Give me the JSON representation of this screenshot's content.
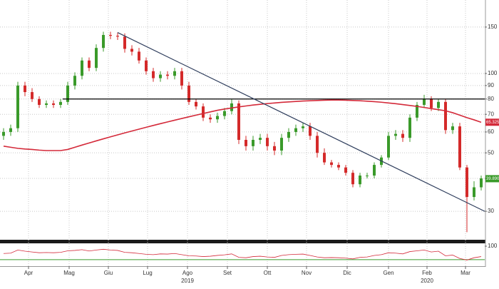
{
  "chart_data": {
    "type": "candlestick",
    "log_scale": true,
    "grid": true,
    "up_color": "#3a9a2a",
    "down_color": "#d42a2a",
    "xlim": [
      -0.5,
      67.5
    ],
    "ylim": [
      23.4,
      190
    ],
    "yticks": [
      30,
      40,
      50,
      60,
      70,
      80,
      90,
      100,
      150
    ],
    "xticks": [
      {
        "value": 3.5,
        "label": "Apr"
      },
      {
        "value": 9.2,
        "label": "Mag"
      },
      {
        "value": 14.7,
        "label": "Giu"
      },
      {
        "value": 20.2,
        "label": "Lug"
      },
      {
        "value": 25.8,
        "label": "Ago"
      },
      {
        "value": 31.4,
        "label": "Set"
      },
      {
        "value": 37,
        "label": "Ott"
      },
      {
        "value": 42.5,
        "label": "Nov"
      },
      {
        "value": 48.2,
        "label": "Dic"
      },
      {
        "value": 54,
        "label": "Gen"
      },
      {
        "value": 59.4,
        "label": "Feb"
      },
      {
        "value": 64.8,
        "label": "Mar"
      }
    ],
    "year_labels": [
      {
        "value": 25.8,
        "label": "2019"
      },
      {
        "value": 59.4,
        "label": "2020"
      }
    ],
    "open": [
      58,
      60,
      62,
      90,
      85,
      80,
      76,
      77,
      76,
      78,
      90,
      98,
      112,
      105,
      125,
      140,
      139,
      138,
      124,
      121,
      112,
      102,
      96,
      99,
      98,
      102,
      90,
      78,
      75,
      68,
      67,
      69,
      72,
      77,
      56,
      53,
      56,
      57,
      53,
      51,
      57,
      60,
      62,
      63,
      58,
      50,
      46,
      45,
      44,
      42,
      38,
      41,
      41,
      45,
      48,
      58,
      59,
      57,
      68,
      76,
      80,
      74,
      78,
      61,
      63,
      44,
      34,
      37
    ],
    "high": [
      62,
      64,
      93,
      93,
      88,
      82,
      79,
      79,
      80,
      93,
      101,
      115,
      115,
      129,
      144,
      144,
      143,
      142,
      128,
      125,
      115,
      105,
      102,
      102,
      105,
      105,
      93,
      80,
      77,
      70,
      71,
      74,
      80,
      79,
      58,
      58,
      59,
      59,
      55,
      59,
      62,
      64,
      65,
      65,
      60,
      52,
      47,
      46,
      45,
      43,
      42,
      42,
      46,
      49,
      60,
      61,
      61,
      70,
      78,
      83,
      82,
      80,
      80,
      65,
      65,
      45,
      39,
      41
    ],
    "low": [
      56,
      58,
      60,
      82,
      78,
      74,
      74,
      74,
      74,
      76,
      87,
      95,
      102,
      102,
      121,
      135,
      134,
      120,
      117,
      109,
      99,
      93,
      93,
      95,
      95,
      87,
      76,
      73,
      66,
      65,
      65,
      67,
      70,
      54,
      51,
      51,
      54,
      51,
      49,
      49,
      55,
      58,
      60,
      56,
      48,
      45,
      44,
      43,
      41,
      37,
      37,
      40,
      40,
      44,
      47,
      56,
      55,
      55,
      66,
      74,
      72,
      72,
      59,
      59,
      43,
      25,
      33,
      36
    ],
    "close": [
      60,
      62,
      90,
      85,
      80,
      76,
      77,
      76,
      78,
      90,
      98,
      112,
      105,
      125,
      140,
      139,
      138,
      124,
      121,
      112,
      102,
      96,
      99,
      98,
      102,
      90,
      78,
      75,
      68,
      67,
      69,
      72,
      77,
      56,
      53,
      56,
      57,
      53,
      51,
      57,
      60,
      62,
      63,
      58,
      50,
      46,
      45,
      44,
      42,
      38,
      41,
      41,
      45,
      48,
      58,
      59,
      57,
      68,
      76,
      80,
      74,
      78,
      61,
      63,
      44,
      34,
      37,
      40
    ],
    "moving_average": {
      "color": "#d42a3a",
      "values": [
        53,
        52.5,
        52,
        51.7,
        51.5,
        51.2,
        51,
        51,
        51,
        51.5,
        52.5,
        53.5,
        54.5,
        55.5,
        56.5,
        57.5,
        58.5,
        59.5,
        60.5,
        61.5,
        62.5,
        63.5,
        64.5,
        65.5,
        66.5,
        67.5,
        68.5,
        69.5,
        70.5,
        71.5,
        72.5,
        73.3,
        74,
        74.7,
        75.3,
        75.9,
        76.4,
        76.9,
        77.3,
        77.7,
        78,
        78.3,
        78.6,
        78.8,
        79,
        79.2,
        79.3,
        79.3,
        79.2,
        79,
        78.8,
        78.5,
        78.2,
        77.8,
        77.3,
        76.8,
        76.2,
        75.6,
        75,
        74.3,
        73.6,
        72.9,
        72.2,
        71,
        69.5,
        68,
        66.7,
        65.3
      ]
    },
    "last_price": {
      "value": 39.89,
      "label": "39.890"
    },
    "ma_last": 65.3254,
    "trend_lines": [
      {
        "color": "#000000",
        "x": [
          8.3,
          67.5
        ],
        "y": [
          80,
          80
        ]
      },
      {
        "color": "#2e3d5c",
        "x": [
          16,
          67.5
        ],
        "y": [
          143,
          30
        ]
      }
    ],
    "oscillator": {
      "color": "#d42a3a",
      "level_color": "#3a9a2a",
      "ylim": [
        0,
        100
      ],
      "yticks": [
        100
      ],
      "level": 30,
      "values": [
        62,
        64,
        80,
        74,
        70,
        66,
        67,
        66,
        68,
        76,
        78,
        82,
        75,
        80,
        84,
        80,
        78,
        68,
        66,
        62,
        58,
        56,
        60,
        59,
        62,
        56,
        50,
        49,
        46,
        48,
        52,
        55,
        60,
        42,
        40,
        46,
        48,
        44,
        42,
        52,
        56,
        58,
        59,
        52,
        44,
        40,
        41,
        40,
        38,
        34,
        42,
        44,
        52,
        56,
        66,
        64,
        60,
        72,
        76,
        80,
        70,
        74,
        50,
        54,
        36,
        28,
        40,
        46
      ]
    }
  }
}
